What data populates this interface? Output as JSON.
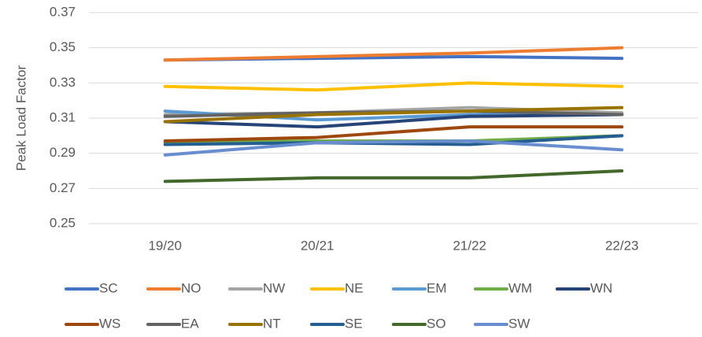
{
  "chart_data": {
    "type": "line",
    "y_label": "Peak Load Factor",
    "categories": [
      "19/20",
      "20/21",
      "21/22",
      "22/23"
    ],
    "ylim": [
      0.25,
      0.37
    ],
    "yticks": [
      0.25,
      0.27,
      0.29,
      0.31,
      0.33,
      0.35,
      0.37
    ],
    "grid": true,
    "legend": "bottom",
    "series": [
      {
        "name": "SC",
        "color": "#4472c4",
        "values": [
          0.343,
          0.344,
          0.345,
          0.344
        ]
      },
      {
        "name": "NO",
        "color": "#ed7d31",
        "values": [
          0.343,
          0.345,
          0.347,
          0.35
        ]
      },
      {
        "name": "NW",
        "color": "#a5a5a5",
        "values": [
          0.312,
          0.313,
          0.316,
          0.313
        ]
      },
      {
        "name": "NE",
        "color": "#ffc000",
        "values": [
          0.328,
          0.326,
          0.33,
          0.328
        ]
      },
      {
        "name": "EM",
        "color": "#5b9bd5",
        "values": [
          0.314,
          0.309,
          0.312,
          0.312
        ]
      },
      {
        "name": "WM",
        "color": "#70ad47",
        "values": [
          0.296,
          0.297,
          0.297,
          0.3
        ]
      },
      {
        "name": "WN",
        "color": "#264478",
        "values": [
          0.308,
          0.305,
          0.311,
          0.312
        ]
      },
      {
        "name": "WS",
        "color": "#9e480e",
        "values": [
          0.297,
          0.299,
          0.305,
          0.305
        ]
      },
      {
        "name": "EA",
        "color": "#636363",
        "values": [
          0.311,
          0.313,
          0.314,
          0.312
        ]
      },
      {
        "name": "NT",
        "color": "#997300",
        "values": [
          0.308,
          0.312,
          0.314,
          0.316
        ]
      },
      {
        "name": "SE",
        "color": "#255e91",
        "values": [
          0.295,
          0.296,
          0.295,
          0.3
        ]
      },
      {
        "name": "SO",
        "color": "#43682b",
        "values": [
          0.274,
          0.276,
          0.276,
          0.28
        ]
      },
      {
        "name": "SW",
        "color": "#698ed0",
        "values": [
          0.289,
          0.296,
          0.297,
          0.292
        ]
      }
    ]
  }
}
